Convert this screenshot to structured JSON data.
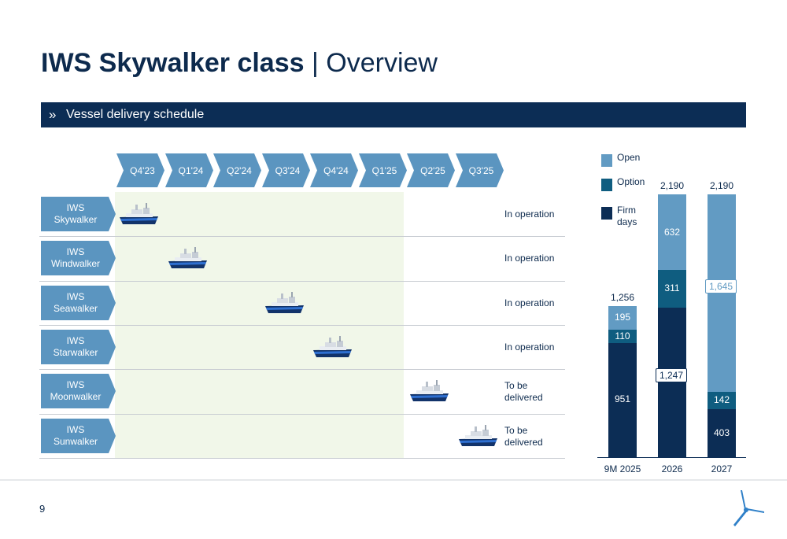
{
  "header": {
    "title_bold": "IWS Skywalker class",
    "title_sep": " | ",
    "title_light": "Overview"
  },
  "banner": {
    "chevron": "»",
    "text": "Vessel delivery schedule"
  },
  "timeline": {
    "quarters": [
      "Q4'23",
      "Q1'24",
      "Q2'24",
      "Q3'24",
      "Q4'24",
      "Q1'25",
      "Q2'25",
      "Q3'25"
    ],
    "vessels": [
      {
        "name_line1": "IWS",
        "name_line2": "Skywalker",
        "delivery_quarter": "Q4'23",
        "status_line1": "In operation",
        "status_line2": ""
      },
      {
        "name_line1": "IWS",
        "name_line2": "Windwalker",
        "delivery_quarter": "Q1'24",
        "status_line1": "In operation",
        "status_line2": ""
      },
      {
        "name_line1": "IWS",
        "name_line2": "Seawalker",
        "delivery_quarter": "Q3'24",
        "status_line1": "In operation",
        "status_line2": ""
      },
      {
        "name_line1": "IWS",
        "name_line2": "Starwalker",
        "delivery_quarter": "Q4'24",
        "status_line1": "In operation",
        "status_line2": ""
      },
      {
        "name_line1": "IWS",
        "name_line2": "Moonwalker",
        "delivery_quarter": "Q2'25",
        "status_line1": "To be",
        "status_line2": "delivered"
      },
      {
        "name_line1": "IWS",
        "name_line2": "Sunwalker",
        "delivery_quarter": "Q3'25",
        "status_line1": "To be",
        "status_line2": "delivered"
      }
    ],
    "ship_icon": "vessel-icon",
    "colors": {
      "quarter_arrow": "#5b95c0",
      "vessel_arrow": "#5b95c0",
      "delivered_zone": "#f1f7e9"
    }
  },
  "chart_data": {
    "type": "bar",
    "stacked": true,
    "categories": [
      "9M 2025",
      "2026",
      "2027"
    ],
    "series": [
      {
        "name": "Firm days",
        "values": [
          951,
          1247,
          403
        ],
        "color": "#0c2d55"
      },
      {
        "name": "Option",
        "values": [
          110,
          311,
          142
        ],
        "color": "#0f5d80"
      },
      {
        "name": "Open",
        "values": [
          195,
          632,
          1645
        ],
        "color": "#629bc3"
      }
    ],
    "totals": [
      "1,256",
      "2,190",
      "2,190"
    ],
    "value_labels": [
      [
        "951",
        "1,247",
        "403"
      ],
      [
        "110",
        "311",
        "142"
      ],
      [
        "195",
        "632",
        "1,645"
      ]
    ],
    "legend": [
      {
        "label_line1": "Open",
        "label_line2": "",
        "color": "#629bc3"
      },
      {
        "label_line1": "Option",
        "label_line2": "",
        "color": "#0f5d80"
      },
      {
        "label_line1": "Firm",
        "label_line2": "days",
        "color": "#0c2d55"
      }
    ],
    "legend_position": "top-left",
    "ylim": [
      0,
      2190
    ],
    "grid": false
  },
  "footer": {
    "page_number": "9",
    "logo_icon": "turbine-logo-icon"
  }
}
